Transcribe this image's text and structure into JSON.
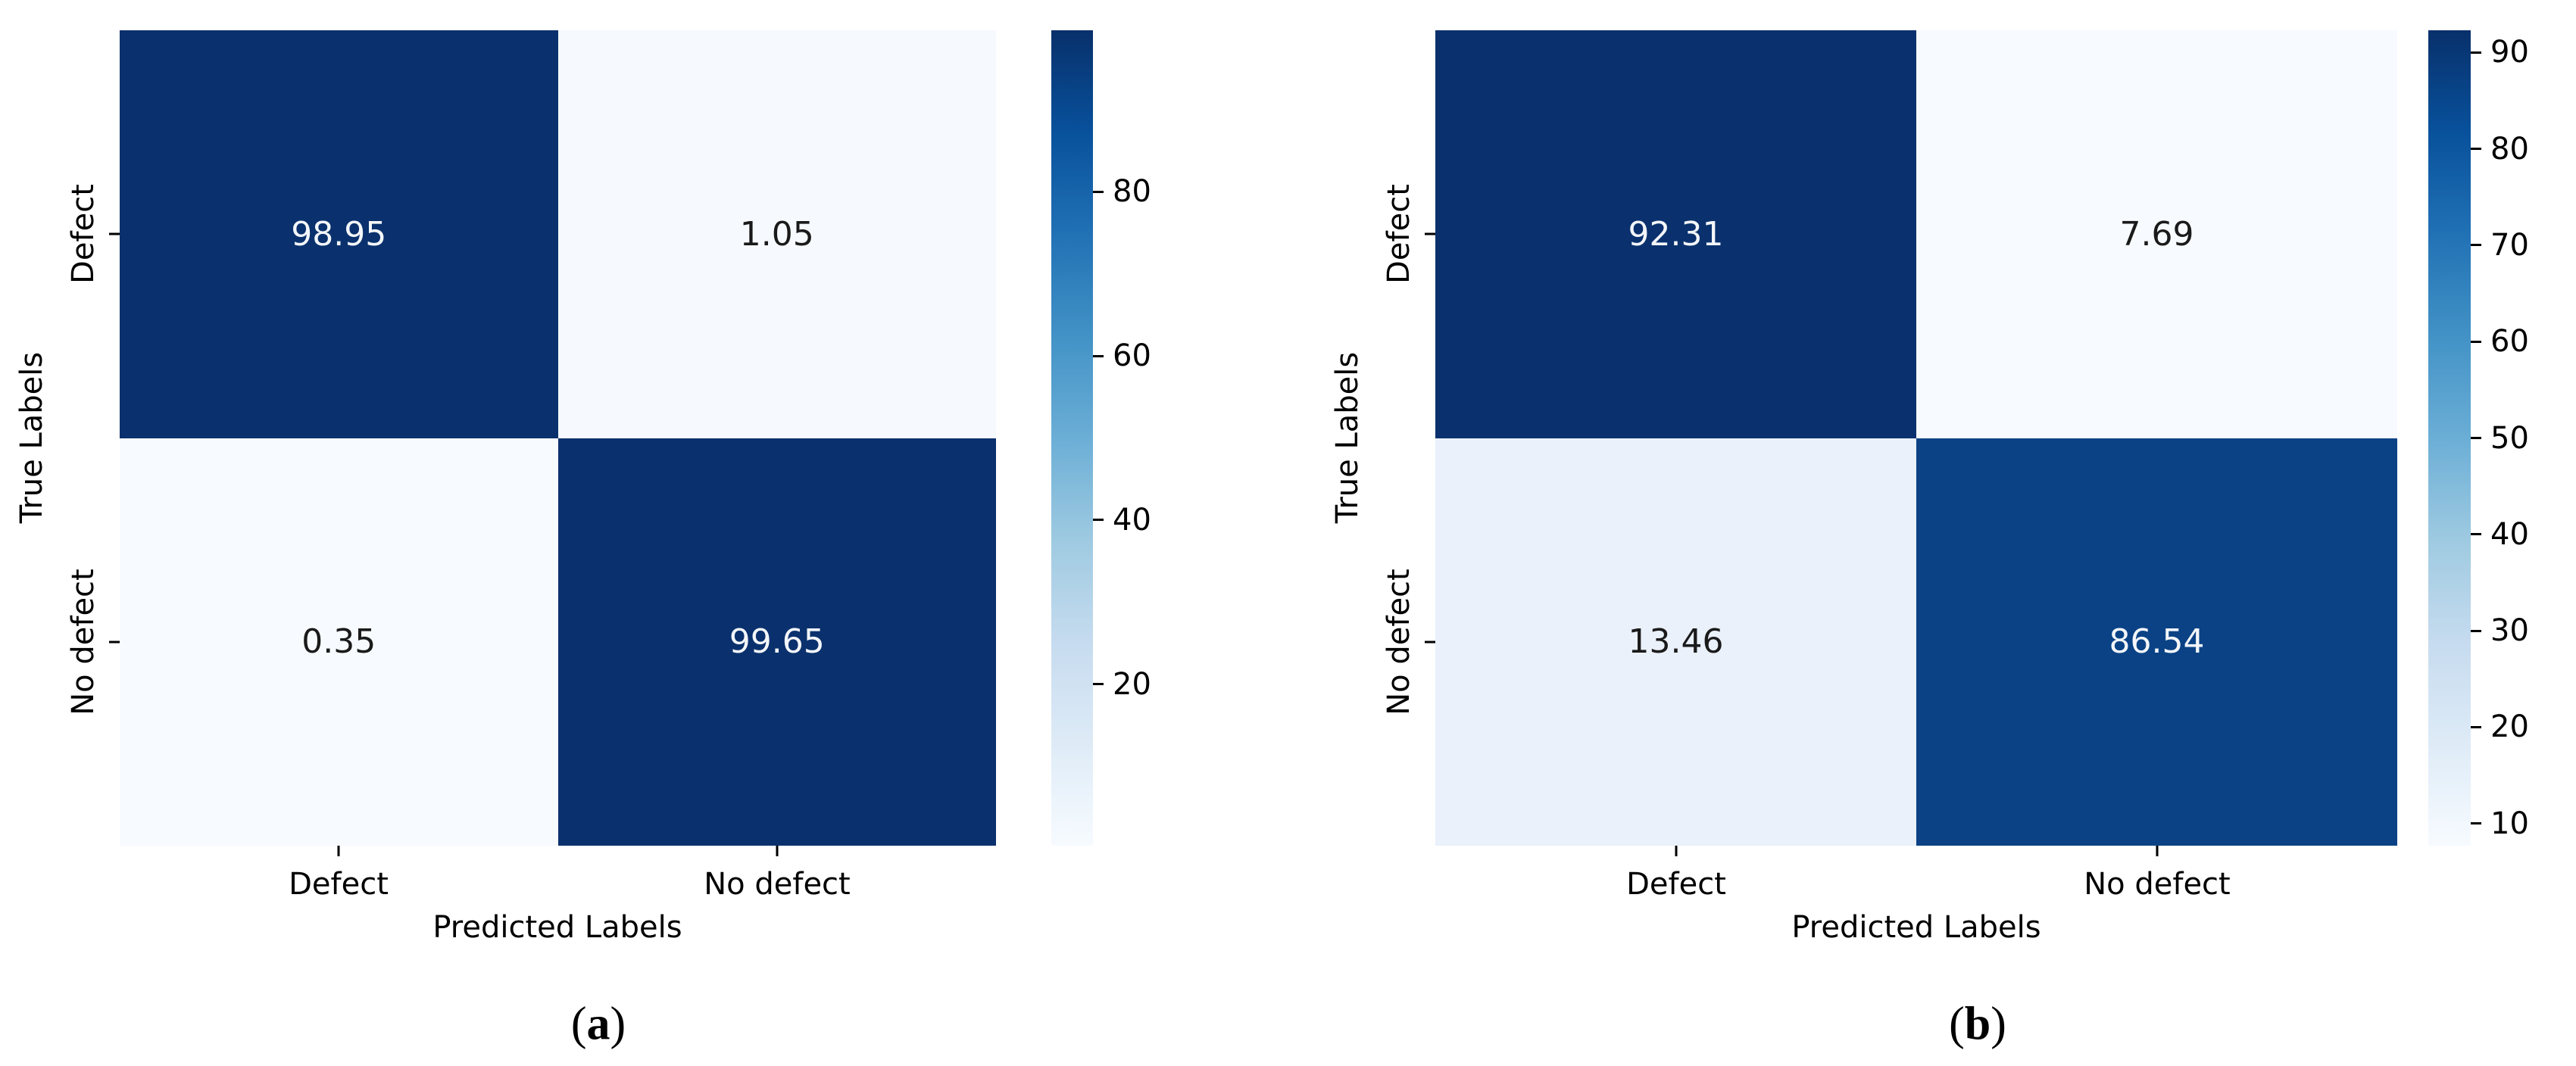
{
  "colormap": {
    "name": "Blues",
    "stops_top_to_bottom": [
      "#08306b",
      "#08519c",
      "#2171b5",
      "#4292c6",
      "#6baed6",
      "#9ecae1",
      "#c6dbef",
      "#deebf7",
      "#f7fbff"
    ]
  },
  "panels": [
    {
      "caption": {
        "open": "(",
        "letter": "a",
        "close": ")"
      },
      "x_axis_title": "Predicted Labels",
      "y_axis_title": "True Labels",
      "x_ticks": [
        "Defect",
        "No defect"
      ],
      "y_ticks": [
        "Defect",
        "No defect"
      ],
      "cells": [
        {
          "value": "98.95",
          "bg": "#0a316d",
          "fg": "#f4f6f9"
        },
        {
          "value": "1.05",
          "bg": "#f6fafe",
          "fg": "#1a1a1a"
        },
        {
          "value": "0.35",
          "bg": "#f7fbff",
          "fg": "#1a1a1a"
        },
        {
          "value": "99.65",
          "bg": "#0a316d",
          "fg": "#f4f6f9"
        }
      ],
      "colorbar": {
        "vmin": 0.35,
        "vmax": 99.65,
        "ticks": [
          80,
          60,
          40,
          20
        ]
      }
    },
    {
      "caption": {
        "open": "(",
        "letter": "b",
        "close": ")"
      },
      "x_axis_title": "Predicted Labels",
      "y_axis_title": "True Labels",
      "x_ticks": [
        "Defect",
        "No defect"
      ],
      "y_ticks": [
        "Defect",
        "No defect"
      ],
      "cells": [
        {
          "value": "92.31",
          "bg": "#0a316d",
          "fg": "#f4f6f9"
        },
        {
          "value": "7.69",
          "bg": "#f7fbff",
          "fg": "#1a1a1a"
        },
        {
          "value": "13.46",
          "bg": "#eaf1fb",
          "fg": "#1a1a1a"
        },
        {
          "value": "86.54",
          "bg": "#0a4285",
          "fg": "#f4f6f9"
        }
      ],
      "colorbar": {
        "vmin": 7.69,
        "vmax": 92.31,
        "ticks": [
          90,
          80,
          70,
          60,
          50,
          40,
          30,
          20,
          10
        ]
      }
    }
  ],
  "chart_data": [
    {
      "type": "heatmap",
      "subfigure": "(a)",
      "x_categories": [
        "Defect",
        "No defect"
      ],
      "y_categories": [
        "Defect",
        "No defect"
      ],
      "values": [
        [
          98.95,
          1.05
        ],
        [
          0.35,
          99.65
        ]
      ],
      "xlabel": "Predicted Labels",
      "ylabel": "True Labels",
      "colormap": "Blues",
      "vmin": 0.35,
      "vmax": 99.65,
      "colorbar_ticks": [
        20,
        40,
        60,
        80
      ],
      "annotations": "cell values shown as percentages",
      "legend_position": "right-colorbar",
      "grid": false
    },
    {
      "type": "heatmap",
      "subfigure": "(b)",
      "x_categories": [
        "Defect",
        "No defect"
      ],
      "y_categories": [
        "Defect",
        "No defect"
      ],
      "values": [
        [
          92.31,
          7.69
        ],
        [
          13.46,
          86.54
        ]
      ],
      "xlabel": "Predicted Labels",
      "ylabel": "True Labels",
      "colormap": "Blues",
      "vmin": 7.69,
      "vmax": 92.31,
      "colorbar_ticks": [
        10,
        20,
        30,
        40,
        50,
        60,
        70,
        80,
        90
      ],
      "annotations": "cell values shown as percentages",
      "legend_position": "right-colorbar",
      "grid": false
    }
  ]
}
